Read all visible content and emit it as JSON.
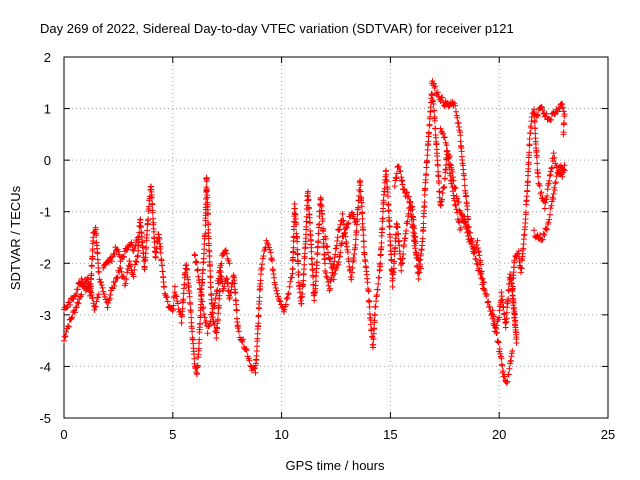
{
  "chart_data": {
    "type": "scatter",
    "title": "Day 269 of 2022, Sidereal Day-to-day VTEC variation (SDTVAR) for receiver p121",
    "xlabel": "GPS time / hours",
    "ylabel": "SDTVAR / TECUs",
    "xlim": [
      0,
      25
    ],
    "ylim": [
      -5,
      2
    ],
    "xticks": [
      0,
      5,
      10,
      15,
      20,
      25
    ],
    "yticks": [
      -5,
      -4,
      -3,
      -2,
      -1,
      0,
      1,
      2
    ],
    "grid": true,
    "marker": "+",
    "color": "#ff0000",
    "series": [
      {
        "name": "SDTVAR",
        "trace": [
          [
            0.0,
            -3.5
          ],
          [
            0.1,
            -3.3
          ],
          [
            0.3,
            -3.1
          ],
          [
            0.5,
            -2.9
          ],
          [
            0.7,
            -2.7
          ],
          [
            0.9,
            -2.4
          ],
          [
            1.1,
            -2.3
          ],
          [
            1.2,
            -2.6
          ],
          [
            1.3,
            -1.9
          ],
          [
            1.35,
            -1.4
          ],
          [
            1.45,
            -1.3
          ],
          [
            1.6,
            -2.2
          ],
          [
            1.8,
            -2.6
          ],
          [
            2.0,
            -2.8
          ],
          [
            2.2,
            -2.5
          ],
          [
            2.4,
            -2.3
          ],
          [
            2.6,
            -2.1
          ],
          [
            2.8,
            -2.4
          ],
          [
            3.0,
            -2.0
          ],
          [
            3.2,
            -2.2
          ],
          [
            3.4,
            -1.8
          ],
          [
            3.5,
            -1.1
          ],
          [
            3.6,
            -1.6
          ],
          [
            3.7,
            -2.1
          ],
          [
            3.8,
            -1.5
          ],
          [
            3.9,
            -0.9
          ],
          [
            4.0,
            -0.5
          ],
          [
            4.1,
            -1.2
          ],
          [
            4.2,
            -1.9
          ],
          [
            4.35,
            -1.4
          ],
          [
            4.5,
            -2.0
          ],
          [
            4.6,
            -2.5
          ],
          [
            4.8,
            -2.8
          ],
          [
            5.0,
            -2.9
          ],
          [
            5.1,
            -2.5
          ],
          [
            5.2,
            -2.7
          ],
          [
            5.3,
            -2.9
          ],
          [
            5.4,
            -3.1
          ],
          [
            5.5,
            -2.6
          ],
          [
            5.6,
            -2.0
          ],
          [
            5.7,
            -2.3
          ],
          [
            5.8,
            -2.8
          ],
          [
            5.9,
            -3.4
          ],
          [
            6.0,
            -3.9
          ],
          [
            6.1,
            -4.2
          ],
          [
            6.2,
            -3.6
          ],
          [
            6.3,
            -2.7
          ],
          [
            6.4,
            -2.0
          ],
          [
            6.5,
            -1.3
          ],
          [
            6.55,
            -0.3
          ],
          [
            6.65,
            -1.5
          ],
          [
            6.75,
            -2.5
          ],
          [
            6.85,
            -3.1
          ],
          [
            7.0,
            -3.4
          ],
          [
            7.1,
            -2.9
          ],
          [
            7.2,
            -2.2
          ],
          [
            7.3,
            -2.5
          ],
          [
            7.5,
            -2.3
          ],
          [
            7.6,
            -2.7
          ],
          [
            7.8,
            -2.2
          ],
          [
            8.0,
            -3.3
          ],
          [
            8.2,
            -3.5
          ],
          [
            8.4,
            -3.7
          ],
          [
            8.6,
            -4.0
          ],
          [
            8.8,
            -4.1
          ],
          [
            8.9,
            -3.4
          ],
          [
            9.0,
            -2.5
          ],
          [
            9.1,
            -2.0
          ],
          [
            9.3,
            -1.6
          ],
          [
            9.5,
            -1.8
          ],
          [
            9.7,
            -2.4
          ],
          [
            9.9,
            -2.7
          ],
          [
            10.1,
            -2.9
          ],
          [
            10.3,
            -2.6
          ],
          [
            10.5,
            -2.2
          ],
          [
            10.6,
            -0.9
          ],
          [
            10.7,
            -1.5
          ],
          [
            10.8,
            -2.4
          ],
          [
            10.9,
            -2.8
          ],
          [
            11.0,
            -2.3
          ],
          [
            11.1,
            -1.6
          ],
          [
            11.2,
            -0.6
          ],
          [
            11.3,
            -1.2
          ],
          [
            11.4,
            -2.0
          ],
          [
            11.5,
            -2.7
          ],
          [
            11.6,
            -2.2
          ],
          [
            11.7,
            -1.4
          ],
          [
            11.8,
            -0.7
          ],
          [
            11.9,
            -1.3
          ],
          [
            12.0,
            -2.1
          ],
          [
            12.2,
            -2.5
          ],
          [
            12.4,
            -2.0
          ],
          [
            12.6,
            -1.4
          ],
          [
            12.8,
            -1.1
          ],
          [
            13.0,
            -1.7
          ],
          [
            13.2,
            -2.3
          ],
          [
            13.4,
            -1.6
          ],
          [
            13.5,
            -1.0
          ],
          [
            13.6,
            -0.4
          ],
          [
            13.7,
            -1.0
          ],
          [
            13.8,
            -1.8
          ],
          [
            14.0,
            -2.6
          ],
          [
            14.1,
            -3.2
          ],
          [
            14.2,
            -3.6
          ],
          [
            14.3,
            -2.9
          ],
          [
            14.5,
            -2.2
          ],
          [
            14.6,
            -1.5
          ],
          [
            14.7,
            -0.7
          ],
          [
            14.8,
            -0.2
          ],
          [
            14.9,
            -0.8
          ],
          [
            15.0,
            -1.6
          ],
          [
            15.1,
            -2.4
          ],
          [
            15.2,
            -1.8
          ],
          [
            15.3,
            -1.2
          ],
          [
            15.5,
            -2.1
          ],
          [
            15.7,
            -1.4
          ],
          [
            15.9,
            -0.8
          ],
          [
            16.1,
            -1.6
          ],
          [
            16.3,
            -2.3
          ],
          [
            16.5,
            -1.4
          ],
          [
            16.6,
            -0.5
          ],
          [
            16.7,
            0.1
          ],
          [
            16.8,
            0.7
          ],
          [
            16.9,
            1.3
          ],
          [
            17.0,
            1.0
          ],
          [
            17.1,
            0.4
          ],
          [
            17.2,
            -0.3
          ],
          [
            17.3,
            -0.9
          ],
          [
            17.5,
            -0.4
          ],
          [
            17.6,
            0.2
          ],
          [
            17.8,
            -0.4
          ],
          [
            18.0,
            -0.9
          ],
          [
            18.2,
            -1.3
          ],
          [
            18.4,
            -1.1
          ],
          [
            18.6,
            -1.5
          ],
          [
            18.8,
            -1.8
          ],
          [
            19.0,
            -1.6
          ],
          [
            19.2,
            -2.2
          ],
          [
            19.4,
            -2.6
          ],
          [
            19.6,
            -2.9
          ],
          [
            19.8,
            -3.3
          ],
          [
            20.0,
            -3.0
          ],
          [
            20.1,
            -2.6
          ],
          [
            20.2,
            -2.9
          ],
          [
            20.3,
            -3.2
          ],
          [
            20.4,
            -2.7
          ],
          [
            20.5,
            -2.2
          ],
          [
            20.6,
            -2.5
          ],
          [
            20.7,
            -2.9
          ],
          [
            20.8,
            -3.5
          ],
          [
            20.6,
            -2.6
          ],
          [
            20.7,
            -1.9
          ],
          [
            20.9,
            -1.8
          ],
          [
            21.0,
            -2.2
          ],
          [
            21.2,
            -1.2
          ],
          [
            21.3,
            -0.5
          ],
          [
            21.4,
            0.4
          ],
          [
            21.5,
            0.8
          ],
          [
            21.6,
            1.0
          ],
          [
            21.7,
            0.2
          ],
          [
            21.8,
            -0.4
          ],
          [
            21.9,
            -0.6
          ],
          [
            22.1,
            -0.9
          ],
          [
            22.3,
            -0.4
          ],
          [
            22.5,
            0.1
          ],
          [
            22.7,
            -0.2
          ],
          [
            22.9,
            -0.3
          ],
          [
            23.0,
            -0.1
          ]
        ],
        "extra_traces": [
          [
            [
              16.9,
              1.55
            ],
            [
              17.1,
              1.35
            ],
            [
              17.3,
              1.2
            ],
            [
              17.5,
              1.1
            ],
            [
              17.7,
              1.05
            ],
            [
              17.9,
              1.1
            ],
            [
              18.05,
              0.9
            ],
            [
              18.2,
              0.5
            ],
            [
              18.3,
              0.0
            ],
            [
              18.4,
              -0.4
            ],
            [
              18.5,
              -0.8
            ],
            [
              18.6,
              -1.3
            ]
          ],
          [
            [
              15.2,
              -0.5
            ],
            [
              15.35,
              -0.1
            ],
            [
              15.5,
              -0.3
            ],
            [
              15.6,
              -0.6
            ],
            [
              15.8,
              -0.7
            ],
            [
              16.0,
              -0.9
            ],
            [
              16.2,
              -1.8
            ],
            [
              16.4,
              -2.1
            ]
          ],
          [
            [
              17.3,
              0.6
            ],
            [
              17.5,
              0.4
            ],
            [
              17.7,
              0.1
            ],
            [
              17.9,
              -0.4
            ],
            [
              18.1,
              -0.8
            ],
            [
              18.3,
              -1.1
            ],
            [
              18.5,
              -1.3
            ],
            [
              18.7,
              -1.5
            ],
            [
              18.9,
              -1.9
            ],
            [
              19.1,
              -2.2
            ],
            [
              19.3,
              -2.5
            ]
          ],
          [
            [
              19.7,
              -2.9
            ],
            [
              19.9,
              -3.4
            ],
            [
              20.1,
              -3.9
            ],
            [
              20.2,
              -4.2
            ],
            [
              20.35,
              -4.3
            ],
            [
              20.5,
              -4.0
            ],
            [
              20.6,
              -3.7
            ]
          ],
          [
            [
              21.6,
              -1.4
            ],
            [
              21.8,
              -1.5
            ],
            [
              22.0,
              -1.5
            ],
            [
              22.2,
              -1.3
            ],
            [
              22.4,
              -0.9
            ],
            [
              22.6,
              -0.4
            ],
            [
              22.8,
              -0.1
            ],
            [
              23.0,
              -0.2
            ]
          ],
          [
            [
              21.7,
              0.8
            ],
            [
              21.9,
              1.0
            ],
            [
              22.1,
              0.9
            ],
            [
              22.3,
              0.8
            ],
            [
              22.5,
              0.9
            ],
            [
              22.7,
              1.0
            ],
            [
              22.9,
              1.1
            ],
            [
              23.0,
              0.9
            ],
            [
              22.95,
              0.5
            ]
          ],
          [
            [
              0.0,
              -2.9
            ],
            [
              0.2,
              -2.8
            ],
            [
              0.4,
              -2.7
            ],
            [
              0.6,
              -2.5
            ],
            [
              0.8,
              -2.3
            ],
            [
              1.0,
              -2.5
            ],
            [
              1.2,
              -2.4
            ],
            [
              1.4,
              -2.9
            ],
            [
              1.6,
              -2.6
            ]
          ],
          [
            [
              1.8,
              -2.1
            ],
            [
              2.0,
              -2.0
            ],
            [
              2.2,
              -1.9
            ],
            [
              2.4,
              -1.7
            ],
            [
              2.6,
              -1.9
            ],
            [
              2.8,
              -1.8
            ],
            [
              3.0,
              -1.6
            ],
            [
              3.2,
              -1.7
            ],
            [
              3.4,
              -1.5
            ]
          ],
          [
            [
              6.0,
              -1.8
            ],
            [
              6.2,
              -2.3
            ],
            [
              6.4,
              -2.9
            ],
            [
              6.6,
              -3.3
            ],
            [
              6.8,
              -3.0
            ],
            [
              7.0,
              -2.6
            ],
            [
              7.2,
              -2.0
            ],
            [
              7.4,
              -1.7
            ],
            [
              7.6,
              -2.0
            ]
          ],
          [
            [
              12.0,
              -1.5
            ],
            [
              12.2,
              -1.9
            ],
            [
              12.4,
              -2.3
            ],
            [
              12.6,
              -2.0
            ],
            [
              12.8,
              -1.5
            ],
            [
              13.0,
              -1.3
            ],
            [
              13.2,
              -1.0
            ],
            [
              13.4,
              -1.2
            ]
          ]
        ]
      }
    ]
  }
}
